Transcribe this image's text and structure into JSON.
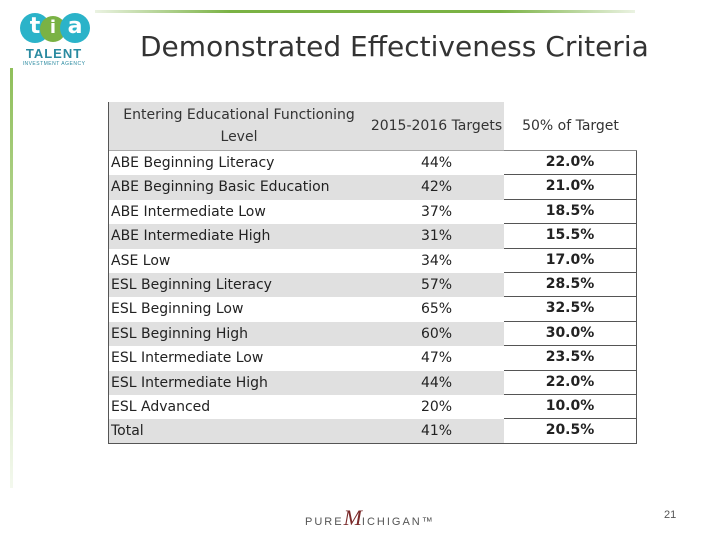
{
  "logo": {
    "letters": [
      "t",
      "i",
      "a"
    ],
    "word": "TALENT",
    "subtitle": "INVESTMENT AGENCY"
  },
  "title": "Demonstrated Effectiveness Criteria",
  "table": {
    "headers": {
      "category": "Entering Educational Functioning Level",
      "targets": "2015-2016 Targets",
      "half": "50% of Target"
    },
    "rows": [
      {
        "category": "ABE Beginning Literacy",
        "target": "44%",
        "half": "22.0%"
      },
      {
        "category": "ABE Beginning Basic Education",
        "target": "42%",
        "half": "21.0%"
      },
      {
        "category": "ABE Intermediate Low",
        "target": "37%",
        "half": "18.5%"
      },
      {
        "category": "ABE Intermediate High",
        "target": "31%",
        "half": "15.5%"
      },
      {
        "category": "ASE Low",
        "target": "34%",
        "half": "17.0%"
      },
      {
        "category": "ESL Beginning Literacy",
        "target": "57%",
        "half": "28.5%"
      },
      {
        "category": "ESL Beginning Low",
        "target": "65%",
        "half": "32.5%"
      },
      {
        "category": "ESL Beginning High",
        "target": "60%",
        "half": "30.0%"
      },
      {
        "category": "ESL Intermediate Low",
        "target": "47%",
        "half": "23.5%"
      },
      {
        "category": "ESL Intermediate High",
        "target": "44%",
        "half": "22.0%"
      },
      {
        "category": "ESL Advanced",
        "target": "20%",
        "half": "10.0%"
      },
      {
        "category": "Total",
        "target": "41%",
        "half": "20.5%"
      }
    ]
  },
  "footer": {
    "brand_left": "PURE",
    "brand_m": "M",
    "brand_right": "ICHIGAN™",
    "page_number": "21"
  },
  "colors": {
    "accent_green": "#7ab244",
    "accent_teal": "#2bb3c9",
    "header_gray": "#e0e0e0"
  }
}
